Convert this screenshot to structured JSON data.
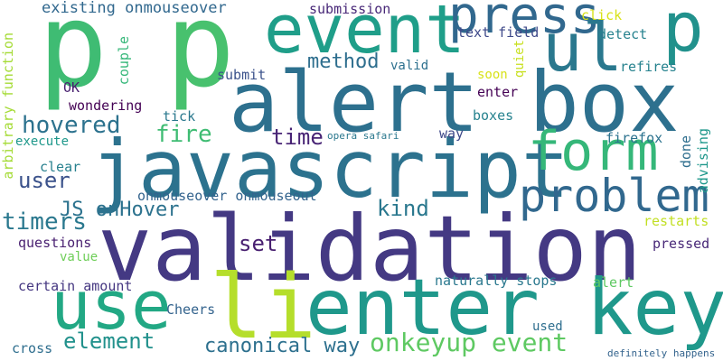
{
  "words": [
    {
      "text": "validation",
      "color": "#443983"
    },
    {
      "text": "javascript",
      "color": "#2c728e"
    },
    {
      "text": "alert box",
      "color": "#2d708e"
    },
    {
      "text": "p",
      "color": "#3fbc73"
    },
    {
      "text": "p",
      "color": "#48c16e"
    },
    {
      "text": "p",
      "color": "#21918c"
    },
    {
      "text": "enter key",
      "color": "#1f988b"
    },
    {
      "text": "li",
      "color": "#b5de2b"
    },
    {
      "text": "use",
      "color": "#22a884"
    },
    {
      "text": "event",
      "color": "#1f9e89"
    },
    {
      "text": "press",
      "color": "#31688e"
    },
    {
      "text": "form",
      "color": "#35b779"
    },
    {
      "text": "problem",
      "color": "#31688e"
    },
    {
      "text": "ul",
      "color": "#2a788e"
    },
    {
      "text": "onkeyup event",
      "color": "#5ec962"
    },
    {
      "text": "method",
      "color": "#2e6e8e"
    },
    {
      "text": "kind",
      "color": "#2a788e"
    },
    {
      "text": "hovered",
      "color": "#2c728e"
    },
    {
      "text": "fire",
      "color": "#3fbc73"
    },
    {
      "text": "time",
      "color": "#482475"
    },
    {
      "text": "element",
      "color": "#21918c"
    },
    {
      "text": "canonical way",
      "color": "#2d708e"
    },
    {
      "text": "timers",
      "color": "#2a788e"
    },
    {
      "text": "user",
      "color": "#3b528b"
    },
    {
      "text": "set",
      "color": "#481f70"
    },
    {
      "text": "JS onHover",
      "color": "#2c728e"
    },
    {
      "text": "existing onmouseover",
      "color": "#31688e"
    },
    {
      "text": "submission",
      "color": "#482878"
    },
    {
      "text": "click",
      "color": "#d8e219"
    },
    {
      "text": "text field",
      "color": "#3e4989"
    },
    {
      "text": "detect",
      "color": "#26828e"
    },
    {
      "text": "valid",
      "color": "#2d708e"
    },
    {
      "text": "soon",
      "color": "#d8e219"
    },
    {
      "text": "refires",
      "color": "#26828e"
    },
    {
      "text": "submit",
      "color": "#3b528b"
    },
    {
      "text": "enter",
      "color": "#440154"
    },
    {
      "text": "OK",
      "color": "#481f70"
    },
    {
      "text": "wondering",
      "color": "#440154"
    },
    {
      "text": "tick",
      "color": "#2a788e"
    },
    {
      "text": "boxes",
      "color": "#26828e"
    },
    {
      "text": "execute",
      "color": "#1f988b"
    },
    {
      "text": "opera safari",
      "color": "#2a788e"
    },
    {
      "text": "way",
      "color": "#3e4989"
    },
    {
      "text": "firefox",
      "color": "#2c728e"
    },
    {
      "text": "clear",
      "color": "#27808e"
    },
    {
      "text": "onmouseover onmouseout",
      "color": "#33638d"
    },
    {
      "text": "restarts",
      "color": "#c2df23"
    },
    {
      "text": "questions",
      "color": "#481f70"
    },
    {
      "text": "value",
      "color": "#6ece58"
    },
    {
      "text": "pressed",
      "color": "#482878"
    },
    {
      "text": "certain amount",
      "color": "#453781"
    },
    {
      "text": "naturally stops",
      "color": "#2a788e"
    },
    {
      "text": "alert",
      "color": "#5ec962"
    },
    {
      "text": "Cheers",
      "color": "#33638d"
    },
    {
      "text": "used",
      "color": "#2e6e8e"
    },
    {
      "text": "cross",
      "color": "#2e6e8e"
    },
    {
      "text": "definitely happens",
      "color": "#33638d"
    },
    {
      "text": "arbitrary function",
      "color": "#a5db36"
    },
    {
      "text": "couple",
      "color": "#35b779"
    },
    {
      "text": "quiet",
      "color": "#c8e020"
    },
    {
      "text": "done",
      "color": "#2e6e8e"
    },
    {
      "text": "advising",
      "color": "#1f988b"
    }
  ]
}
